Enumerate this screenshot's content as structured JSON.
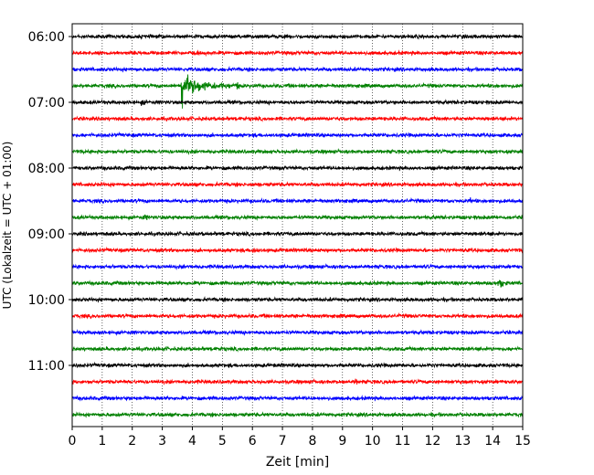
{
  "chart_data": {
    "type": "line",
    "xlabel": "Zeit  [min]",
    "ylabel": "UTC (Lokalzeit = UTC + 01:00)",
    "xlim": [
      0,
      15
    ],
    "x_ticks": [
      0,
      1,
      2,
      3,
      4,
      5,
      6,
      7,
      8,
      9,
      10,
      11,
      12,
      13,
      14,
      15
    ],
    "y_tick_labels": [
      "06:00",
      "07:00",
      "08:00",
      "09:00",
      "10:00",
      "11:00"
    ],
    "y_tick_trace_index": [
      0,
      4,
      8,
      12,
      16,
      20
    ],
    "trace_interval_min": 15,
    "trace_start": "06:00",
    "trace_count": 24,
    "trace_colors": [
      "#000000",
      "#ff0000",
      "#0000ff",
      "#008000"
    ],
    "grid": "vertical dotted",
    "events": [
      {
        "trace": 3,
        "start": "06:45",
        "minute": 3.65,
        "duration_min": 1.9,
        "amplitude": 9.0,
        "type": "earthquake"
      },
      {
        "trace": 3,
        "start": "06:45",
        "minute": 5.45,
        "duration_min": 0.25,
        "amplitude": 3.0,
        "type": "burst"
      },
      {
        "trace": 4,
        "start": "07:00",
        "minute": 2.3,
        "duration_min": 0.4,
        "amplitude": 1.2,
        "type": "burst"
      },
      {
        "trace": 13,
        "start": "09:15",
        "minute": 6.0,
        "duration_min": 0.5,
        "amplitude": 2.5,
        "type": "burst"
      },
      {
        "trace": 15,
        "start": "09:45",
        "minute": 14.2,
        "duration_min": 0.6,
        "amplitude": 2.8,
        "type": "burst"
      },
      {
        "trace": 11,
        "start": "08:45",
        "minute": 2.4,
        "duration_min": 0.3,
        "amplitude": 1.2,
        "type": "burst"
      },
      {
        "trace": 10,
        "start": "08:30",
        "minute": 13.2,
        "duration_min": 0.4,
        "amplitude": 1.2,
        "type": "burst"
      },
      {
        "trace": 21,
        "start": "11:15",
        "minute": 9.4,
        "duration_min": 0.4,
        "amplitude": 1.2,
        "type": "burst"
      }
    ]
  }
}
